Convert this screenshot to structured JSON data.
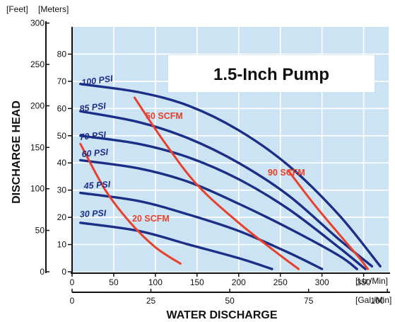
{
  "colors": {
    "plot_bg": "#cce3f4",
    "grid": "#ffffff",
    "psi_curve": "#1c2f86",
    "scfm_curve": "#e8402a",
    "axis": "#111111"
  },
  "chart_data": {
    "type": "line",
    "title": "1.5-Inch Pump",
    "xlabel": "WATER DISCHARGE",
    "ylabel": "DISCHARGE HEAD",
    "x_unit_primary": "[Ltr./Min]",
    "x_unit_secondary": "[Gal./Min]",
    "y_unit_primary": "[Meters]",
    "y_unit_secondary": "[Feet]",
    "xlim": [
      0,
      380
    ],
    "ylim": [
      0,
      90
    ],
    "grid": true,
    "x_ticks": [
      "0",
      "50",
      "100",
      "150",
      "200",
      "250",
      "300",
      "350"
    ],
    "x_ticks_gal": [
      {
        "label": "0",
        "value": 0
      },
      {
        "label": "25",
        "value": 94.6
      },
      {
        "label": "50",
        "value": 189.3
      },
      {
        "label": "75",
        "value": 283.9
      },
      {
        "label": "100",
        "value": 378.5
      }
    ],
    "y_ticks": [
      "0",
      "10",
      "20",
      "30",
      "40",
      "50",
      "60",
      "70",
      "80"
    ],
    "y_ticks_feet": [
      {
        "label": "0",
        "value": 0
      },
      {
        "label": "50",
        "value": 15.2
      },
      {
        "label": "100",
        "value": 30.5
      },
      {
        "label": "150",
        "value": 45.7
      },
      {
        "label": "200",
        "value": 61.0
      },
      {
        "label": "250",
        "value": 76.2
      },
      {
        "label": "300",
        "value": 91.4
      }
    ],
    "pressure_series": [
      {
        "name": "100 PSI",
        "x": [
          10,
          80,
          140,
          200,
          260,
          320,
          370
        ],
        "y": [
          69,
          66,
          61,
          52,
          39,
          21,
          2
        ]
      },
      {
        "name": "85 PSI",
        "x": [
          10,
          80,
          140,
          200,
          260,
          320,
          360
        ],
        "y": [
          59,
          55,
          49,
          40,
          28,
          12,
          2
        ]
      },
      {
        "name": "70 PSI",
        "x": [
          10,
          80,
          140,
          200,
          260,
          320,
          352
        ],
        "y": [
          50,
          47,
          42,
          34,
          23,
          9,
          1
        ]
      },
      {
        "name": "60 PSI",
        "x": [
          10,
          80,
          140,
          200,
          260,
          320,
          342
        ],
        "y": [
          41,
          38,
          33,
          25,
          16,
          6,
          1
        ]
      },
      {
        "name": "45 PSI",
        "x": [
          10,
          80,
          140,
          200,
          260,
          300
        ],
        "y": [
          29,
          26,
          21,
          15,
          7,
          1
        ]
      },
      {
        "name": "30 PSI",
        "x": [
          10,
          80,
          140,
          200,
          240
        ],
        "y": [
          18,
          15,
          10,
          5,
          1
        ]
      }
    ],
    "air_series": [
      {
        "name": "20 SCFM",
        "x": [
          10,
          40,
          70,
          100,
          130
        ],
        "y": [
          47,
          30,
          18,
          9,
          3
        ]
      },
      {
        "name": "50 SCFM",
        "x": [
          75,
          110,
          150,
          200,
          250,
          272
        ],
        "y": [
          64,
          48,
          32,
          18,
          6,
          1
        ]
      },
      {
        "name": "90 SCFM",
        "x": [
          260,
          290,
          320,
          345,
          355
        ],
        "y": [
          37,
          25,
          14,
          5,
          1
        ]
      }
    ]
  }
}
